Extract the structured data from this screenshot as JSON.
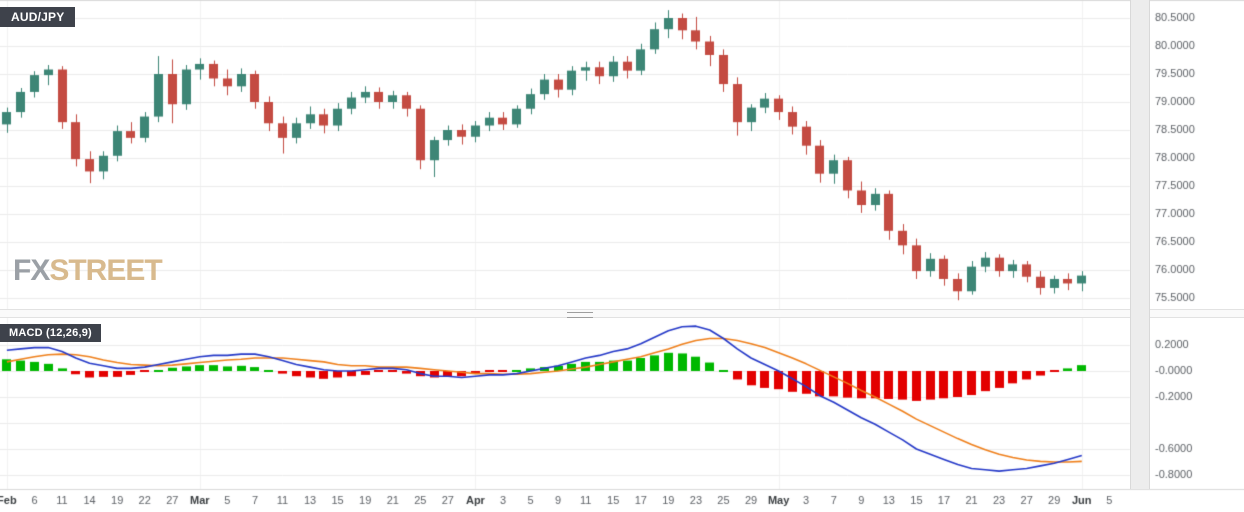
{
  "badges": {
    "instrument": "AUD/JPY",
    "macd": "MACD (12,26,9)"
  },
  "watermark": {
    "fx": "FX",
    "street": "STREET"
  },
  "chart_data": {
    "type": "candlestick",
    "title": "AUD/JPY",
    "indicator": "MACD (12,26,9)",
    "x_labels": [
      "Feb",
      "6",
      "11",
      "14",
      "19",
      "22",
      "27",
      "Mar",
      "5",
      "7",
      "11",
      "13",
      "15",
      "19",
      "21",
      "25",
      "27",
      "Apr",
      "3",
      "5",
      "9",
      "11",
      "15",
      "17",
      "19",
      "23",
      "25",
      "29",
      "May",
      "3",
      "7",
      "9",
      "13",
      "15",
      "17",
      "21",
      "23",
      "27",
      "29",
      "Jun",
      "5"
    ],
    "month_labels": [
      "Feb",
      "Mar",
      "Apr",
      "May",
      "Jun"
    ],
    "price_axis": {
      "min": 75.5,
      "max": 80.5,
      "step": 0.5,
      "tick_values": [
        80.5,
        80.0,
        79.5,
        79.0,
        78.5,
        78.0,
        77.5,
        77.0,
        76.5,
        76.0,
        75.5
      ],
      "tick_labels": [
        "80.5000",
        "80.0000",
        "79.5000",
        "79.0000",
        "78.5000",
        "78.0000",
        "77.5000",
        "77.0000",
        "76.5000",
        "76.0000",
        "75.5000"
      ]
    },
    "ohlc": [
      [
        78.6,
        78.9,
        78.45,
        78.82
      ],
      [
        78.82,
        79.25,
        78.72,
        79.18
      ],
      [
        79.18,
        79.55,
        79.08,
        79.48
      ],
      [
        79.48,
        79.66,
        79.3,
        79.58
      ],
      [
        79.58,
        79.64,
        78.52,
        78.64
      ],
      [
        78.64,
        78.78,
        77.85,
        77.98
      ],
      [
        77.98,
        78.12,
        77.55,
        77.76
      ],
      [
        77.76,
        78.12,
        77.62,
        78.04
      ],
      [
        78.04,
        78.58,
        77.94,
        78.48
      ],
      [
        78.48,
        78.64,
        78.26,
        78.36
      ],
      [
        78.36,
        78.82,
        78.28,
        78.74
      ],
      [
        78.74,
        79.82,
        78.64,
        79.5
      ],
      [
        79.5,
        79.76,
        78.62,
        78.96
      ],
      [
        78.96,
        79.66,
        78.86,
        79.58
      ],
      [
        79.58,
        79.78,
        79.4,
        79.68
      ],
      [
        79.68,
        79.74,
        79.28,
        79.42
      ],
      [
        79.42,
        79.58,
        79.12,
        79.28
      ],
      [
        79.28,
        79.6,
        79.18,
        79.5
      ],
      [
        79.5,
        79.56,
        78.88,
        79.0
      ],
      [
        79.0,
        79.1,
        78.48,
        78.62
      ],
      [
        78.62,
        78.74,
        78.08,
        78.36
      ],
      [
        78.36,
        78.72,
        78.26,
        78.62
      ],
      [
        78.62,
        78.92,
        78.52,
        78.78
      ],
      [
        78.78,
        78.88,
        78.44,
        78.58
      ],
      [
        78.58,
        78.98,
        78.48,
        78.88
      ],
      [
        78.88,
        79.18,
        78.78,
        79.08
      ],
      [
        79.08,
        79.28,
        78.98,
        79.18
      ],
      [
        79.18,
        79.26,
        78.88,
        79.0
      ],
      [
        79.0,
        79.2,
        78.88,
        79.12
      ],
      [
        79.12,
        79.18,
        78.74,
        78.88
      ],
      [
        78.88,
        78.94,
        77.8,
        77.96
      ],
      [
        77.96,
        78.38,
        77.66,
        78.32
      ],
      [
        78.32,
        78.58,
        78.22,
        78.5
      ],
      [
        78.5,
        78.6,
        78.24,
        78.38
      ],
      [
        78.38,
        78.66,
        78.28,
        78.58
      ],
      [
        78.58,
        78.82,
        78.48,
        78.72
      ],
      [
        78.72,
        78.82,
        78.5,
        78.6
      ],
      [
        78.6,
        78.94,
        78.54,
        78.88
      ],
      [
        78.88,
        79.24,
        78.78,
        79.14
      ],
      [
        79.14,
        79.5,
        79.04,
        79.4
      ],
      [
        79.4,
        79.5,
        79.08,
        79.22
      ],
      [
        79.22,
        79.64,
        79.12,
        79.56
      ],
      [
        79.56,
        79.72,
        79.38,
        79.62
      ],
      [
        79.62,
        79.72,
        79.32,
        79.46
      ],
      [
        79.46,
        79.82,
        79.36,
        79.72
      ],
      [
        79.72,
        79.82,
        79.42,
        79.56
      ],
      [
        79.56,
        80.04,
        79.48,
        79.94
      ],
      [
        79.94,
        80.42,
        79.86,
        80.3
      ],
      [
        80.3,
        80.64,
        80.14,
        80.5
      ],
      [
        80.5,
        80.58,
        80.12,
        80.28
      ],
      [
        80.28,
        80.52,
        79.94,
        80.08
      ],
      [
        80.08,
        80.18,
        79.64,
        79.84
      ],
      [
        79.84,
        79.94,
        79.18,
        79.32
      ],
      [
        79.32,
        79.44,
        78.4,
        78.64
      ],
      [
        78.64,
        78.96,
        78.48,
        78.9
      ],
      [
        78.9,
        79.16,
        78.8,
        79.06
      ],
      [
        79.06,
        79.12,
        78.68,
        78.82
      ],
      [
        78.82,
        78.92,
        78.42,
        78.56
      ],
      [
        78.56,
        78.66,
        78.06,
        78.22
      ],
      [
        78.22,
        78.32,
        77.56,
        77.72
      ],
      [
        77.72,
        78.06,
        77.54,
        77.96
      ],
      [
        77.96,
        78.02,
        77.28,
        77.42
      ],
      [
        77.42,
        77.58,
        77.02,
        77.16
      ],
      [
        77.16,
        77.46,
        77.06,
        77.36
      ],
      [
        77.36,
        77.42,
        76.54,
        76.7
      ],
      [
        76.7,
        76.82,
        76.28,
        76.44
      ],
      [
        76.44,
        76.56,
        75.84,
        75.98
      ],
      [
        75.98,
        76.3,
        75.88,
        76.2
      ],
      [
        76.2,
        76.26,
        75.72,
        75.84
      ],
      [
        75.84,
        75.94,
        75.46,
        75.62
      ],
      [
        75.62,
        76.16,
        75.56,
        76.06
      ],
      [
        76.06,
        76.32,
        75.96,
        76.22
      ],
      [
        76.22,
        76.28,
        75.88,
        75.98
      ],
      [
        75.98,
        76.18,
        75.86,
        76.1
      ],
      [
        76.1,
        76.16,
        75.78,
        75.88
      ],
      [
        75.88,
        75.98,
        75.56,
        75.68
      ],
      [
        75.68,
        75.9,
        75.58,
        75.84
      ],
      [
        75.84,
        75.94,
        75.64,
        75.76
      ],
      [
        75.76,
        75.98,
        75.62,
        75.9
      ]
    ],
    "macd_panel": {
      "axis_min": -0.85,
      "axis_max": 0.35,
      "ticks": [
        {
          "label": "0.2000",
          "value": 0.2
        },
        {
          "label": "-0.0000",
          "value": 0
        },
        {
          "label": "-0.2000",
          "value": -0.2
        },
        {
          "label": "-0.6000",
          "value": -0.6
        },
        {
          "label": "-0.8000",
          "value": -0.8
        }
      ],
      "grid_values": [
        0.2,
        0,
        -0.2,
        -0.4,
        -0.6,
        -0.8
      ],
      "macd_line": [
        0.16,
        0.17,
        0.18,
        0.18,
        0.15,
        0.1,
        0.06,
        0.04,
        0.02,
        0.02,
        0.03,
        0.05,
        0.07,
        0.09,
        0.11,
        0.12,
        0.12,
        0.13,
        0.13,
        0.11,
        0.08,
        0.05,
        0.03,
        0.01,
        0.0,
        0.0,
        0.01,
        0.02,
        0.02,
        0.01,
        -0.02,
        -0.04,
        -0.04,
        -0.05,
        -0.04,
        -0.03,
        -0.03,
        -0.02,
        0.0,
        0.02,
        0.04,
        0.07,
        0.1,
        0.12,
        0.15,
        0.17,
        0.21,
        0.26,
        0.31,
        0.34,
        0.345,
        0.315,
        0.25,
        0.17,
        0.1,
        0.05,
        0.0,
        -0.06,
        -0.12,
        -0.19,
        -0.24,
        -0.3,
        -0.36,
        -0.41,
        -0.47,
        -0.53,
        -0.6,
        -0.64,
        -0.68,
        -0.72,
        -0.75,
        -0.76,
        -0.77,
        -0.76,
        -0.75,
        -0.73,
        -0.71,
        -0.68,
        -0.65
      ],
      "signal_line": [
        0.07,
        0.09,
        0.11,
        0.125,
        0.13,
        0.125,
        0.11,
        0.085,
        0.065,
        0.05,
        0.045,
        0.04,
        0.045,
        0.055,
        0.065,
        0.075,
        0.085,
        0.09,
        0.1,
        0.1,
        0.1,
        0.09,
        0.08,
        0.07,
        0.05,
        0.04,
        0.04,
        0.03,
        0.03,
        0.03,
        0.02,
        0.01,
        0.0,
        -0.01,
        -0.02,
        -0.02,
        -0.025,
        -0.025,
        -0.02,
        -0.01,
        0.0,
        0.015,
        0.03,
        0.05,
        0.07,
        0.09,
        0.11,
        0.14,
        0.17,
        0.205,
        0.235,
        0.25,
        0.25,
        0.235,
        0.21,
        0.18,
        0.14,
        0.1,
        0.055,
        0.005,
        -0.045,
        -0.095,
        -0.15,
        -0.2,
        -0.255,
        -0.31,
        -0.37,
        -0.42,
        -0.47,
        -0.52,
        -0.565,
        -0.605,
        -0.64,
        -0.665,
        -0.685,
        -0.695,
        -0.7,
        -0.7,
        -0.695
      ],
      "histogram": [
        0.09,
        0.08,
        0.07,
        0.055,
        0.02,
        -0.025,
        -0.05,
        -0.045,
        -0.045,
        -0.03,
        -0.015,
        0.01,
        0.025,
        0.035,
        0.045,
        0.045,
        0.035,
        0.04,
        0.03,
        0.01,
        -0.02,
        -0.04,
        -0.05,
        -0.06,
        -0.05,
        -0.04,
        -0.03,
        -0.01,
        -0.01,
        -0.02,
        -0.04,
        -0.05,
        -0.04,
        -0.04,
        -0.02,
        -0.01,
        -0.005,
        0.005,
        0.02,
        0.03,
        0.04,
        0.055,
        0.07,
        0.07,
        0.08,
        0.08,
        0.1,
        0.12,
        0.14,
        0.135,
        0.11,
        0.065,
        0.0,
        -0.065,
        -0.11,
        -0.13,
        -0.14,
        -0.16,
        -0.175,
        -0.195,
        -0.195,
        -0.205,
        -0.21,
        -0.21,
        -0.215,
        -0.22,
        -0.23,
        -0.22,
        -0.21,
        -0.2,
        -0.185,
        -0.155,
        -0.13,
        -0.095,
        -0.065,
        -0.035,
        -0.01,
        0.02,
        0.045
      ]
    },
    "colors": {
      "background": "#ffffff",
      "grid": "#ececec",
      "grid_vertical": "#f2f2f2",
      "border": "#d9d9d9",
      "axis_text": "#5f6368",
      "x_text": "#5f6368",
      "x_month_text": "#3c4043",
      "candle_up": "#3d8676",
      "candle_down": "#c44b42",
      "hist_up": "#00b800",
      "hist_down": "#e30000",
      "macd_line": "#2438c8",
      "signal_line": "#ef7f1a",
      "badge_bg": "#3e424b",
      "watermark_fx": "#9ba0a6",
      "watermark_street": "#d8ba8e"
    }
  }
}
